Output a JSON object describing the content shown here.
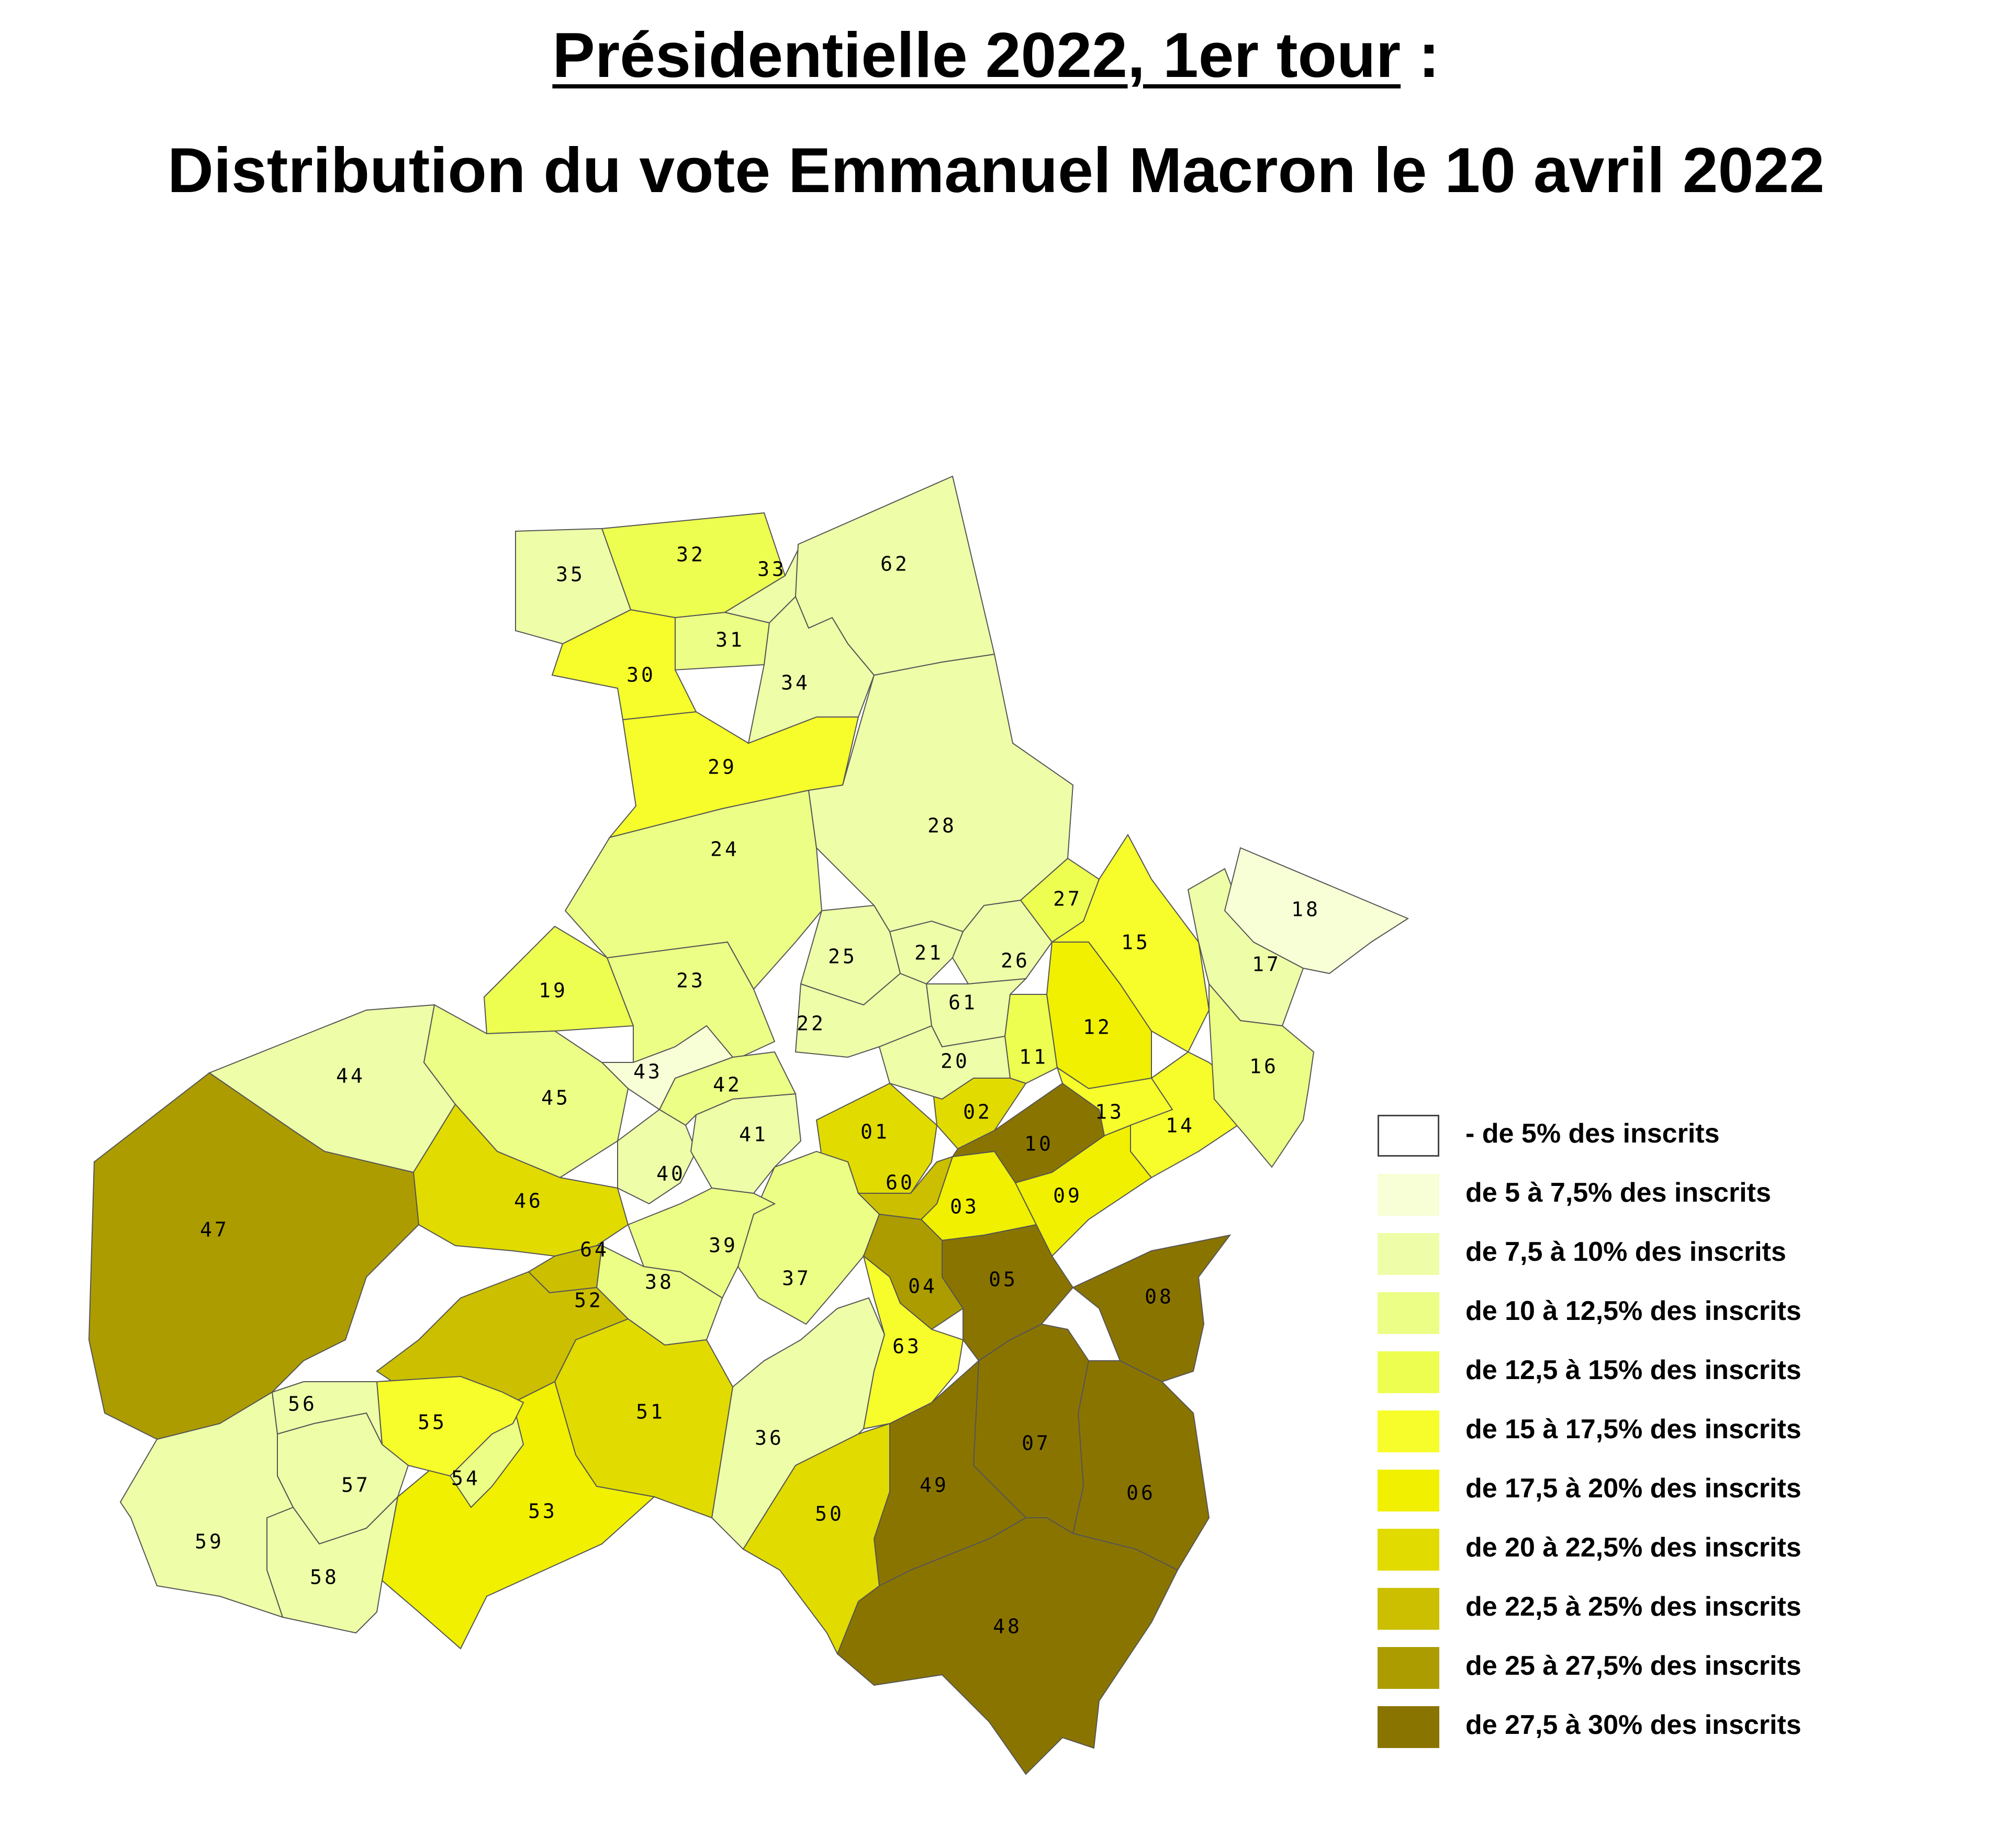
{
  "title": {
    "line1_underlined": "Présidentielle 2022, 1er tour",
    "line1_suffix": " :",
    "line2": "Distribution du vote Emmanuel Macron le 10 avril 2022"
  },
  "legend": [
    {
      "label": "- de 5% des inscrits",
      "color": "#ffffff"
    },
    {
      "label": "de 5 à 7,5% des inscrits",
      "color": "#f8fed5"
    },
    {
      "label": "de 7,5 à 10% des inscrits",
      "color": "#eefea8"
    },
    {
      "label": "de 10 à 12,5% des inscrits",
      "color": "#ecfe86"
    },
    {
      "label": "de 12,5 à 15% des inscrits",
      "color": "#edfe50"
    },
    {
      "label": "de 15 à 17,5% des inscrits",
      "color": "#f6fd2a"
    },
    {
      "label": "de 17,5 à 20% des inscrits",
      "color": "#f0f000"
    },
    {
      "label": "de 20 à 22,5% des inscrits",
      "color": "#e1db00"
    },
    {
      "label": "de 22,5 à 25% des inscrits",
      "color": "#cbbf00"
    },
    {
      "label": "de 25 à 27,5% des inscrits",
      "color": "#ac9c00"
    },
    {
      "label": "de 27,5 à 30% des inscrits",
      "color": "#8a7400"
    }
  ],
  "zones": [
    {
      "id": "01",
      "cls": 7
    },
    {
      "id": "02",
      "cls": 7
    },
    {
      "id": "03",
      "cls": 6
    },
    {
      "id": "04",
      "cls": 9
    },
    {
      "id": "05",
      "cls": 10
    },
    {
      "id": "06",
      "cls": 10
    },
    {
      "id": "07",
      "cls": 10
    },
    {
      "id": "08",
      "cls": 10
    },
    {
      "id": "09",
      "cls": 6
    },
    {
      "id": "10",
      "cls": 10
    },
    {
      "id": "11",
      "cls": 4
    },
    {
      "id": "12",
      "cls": 6
    },
    {
      "id": "13",
      "cls": 5
    },
    {
      "id": "14",
      "cls": 5
    },
    {
      "id": "15",
      "cls": 5
    },
    {
      "id": "16",
      "cls": 3
    },
    {
      "id": "17",
      "cls": 2
    },
    {
      "id": "18",
      "cls": 1
    },
    {
      "id": "19",
      "cls": 4
    },
    {
      "id": "20",
      "cls": 2
    },
    {
      "id": "21",
      "cls": 2
    },
    {
      "id": "22",
      "cls": 2
    },
    {
      "id": "23",
      "cls": 3
    },
    {
      "id": "24",
      "cls": 3
    },
    {
      "id": "25",
      "cls": 2
    },
    {
      "id": "26",
      "cls": 2
    },
    {
      "id": "27",
      "cls": 4
    },
    {
      "id": "28",
      "cls": 2
    },
    {
      "id": "29",
      "cls": 5
    },
    {
      "id": "30",
      "cls": 5
    },
    {
      "id": "31",
      "cls": 3
    },
    {
      "id": "32",
      "cls": 4
    },
    {
      "id": "33",
      "cls": 2
    },
    {
      "id": "34",
      "cls": 2
    },
    {
      "id": "35",
      "cls": 2
    },
    {
      "id": "36",
      "cls": 2
    },
    {
      "id": "37",
      "cls": 3
    },
    {
      "id": "38",
      "cls": 3
    },
    {
      "id": "39",
      "cls": 3
    },
    {
      "id": "40",
      "cls": 2
    },
    {
      "id": "41",
      "cls": 2
    },
    {
      "id": "42",
      "cls": 3
    },
    {
      "id": "43",
      "cls": 1
    },
    {
      "id": "44",
      "cls": 2
    },
    {
      "id": "45",
      "cls": 3
    },
    {
      "id": "46",
      "cls": 7
    },
    {
      "id": "47",
      "cls": 9
    },
    {
      "id": "48",
      "cls": 10
    },
    {
      "id": "49",
      "cls": 10
    },
    {
      "id": "50",
      "cls": 7
    },
    {
      "id": "51",
      "cls": 7
    },
    {
      "id": "52",
      "cls": 8
    },
    {
      "id": "53",
      "cls": 6
    },
    {
      "id": "54",
      "cls": 3
    },
    {
      "id": "55",
      "cls": 5
    },
    {
      "id": "56",
      "cls": 2
    },
    {
      "id": "57",
      "cls": 2
    },
    {
      "id": "58",
      "cls": 2
    },
    {
      "id": "59",
      "cls": 2
    },
    {
      "id": "60",
      "cls": 8
    },
    {
      "id": "61",
      "cls": 2
    },
    {
      "id": "62",
      "cls": 2
    },
    {
      "id": "63",
      "cls": 5
    },
    {
      "id": "64",
      "cls": 8
    }
  ]
}
